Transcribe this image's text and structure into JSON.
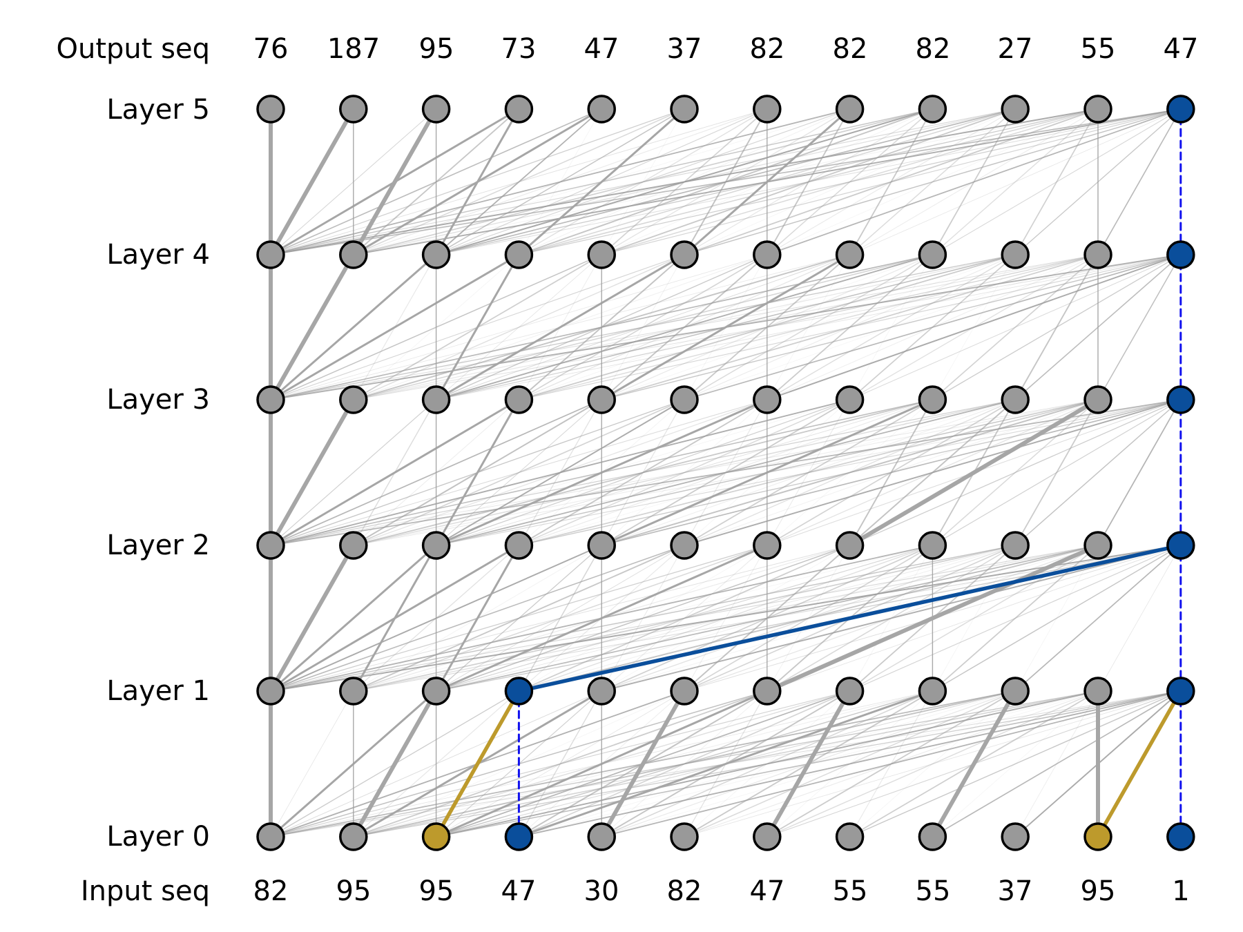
{
  "labels": {
    "output_seq": "Output seq",
    "input_seq": "Input seq",
    "layers": [
      "Layer 0",
      "Layer 1",
      "Layer 2",
      "Layer 3",
      "Layer 4",
      "Layer 5"
    ]
  },
  "output_seq": [
    "76",
    "187",
    "95",
    "73",
    "47",
    "37",
    "82",
    "82",
    "82",
    "27",
    "55",
    "47"
  ],
  "input_seq": [
    "82",
    "95",
    "95",
    "47",
    "30",
    "82",
    "47",
    "55",
    "55",
    "37",
    "95",
    "1"
  ],
  "colors": {
    "node_default": "#999999",
    "node_blue": "#0a4e9b",
    "node_gold": "#bd9a2c",
    "edge_gray": "#a6a6a6",
    "edge_blue": "#0a4e9b",
    "edge_gold": "#bd9a2c",
    "dashed": "#1010ee"
  },
  "highlighted_nodes": [
    {
      "layer": 0,
      "pos": 2,
      "color": "gold"
    },
    {
      "layer": 0,
      "pos": 3,
      "color": "blue"
    },
    {
      "layer": 0,
      "pos": 10,
      "color": "gold"
    },
    {
      "layer": 0,
      "pos": 11,
      "color": "blue"
    },
    {
      "layer": 1,
      "pos": 3,
      "color": "blue"
    },
    {
      "layer": 1,
      "pos": 11,
      "color": "blue"
    },
    {
      "layer": 2,
      "pos": 11,
      "color": "blue"
    },
    {
      "layer": 3,
      "pos": 11,
      "color": "blue"
    },
    {
      "layer": 4,
      "pos": 11,
      "color": "blue"
    },
    {
      "layer": 5,
      "pos": 11,
      "color": "blue"
    }
  ],
  "highlighted_edges": [
    {
      "from_layer": 0,
      "from": 2,
      "to": 3,
      "color": "gold"
    },
    {
      "from_layer": 0,
      "from": 10,
      "to": 11,
      "color": "gold"
    },
    {
      "from_layer": 1,
      "from": 3,
      "to": 11,
      "color": "blue"
    }
  ],
  "strong_edges": [
    {
      "from_layer": 0,
      "from": 0,
      "to": 0
    },
    {
      "from_layer": 0,
      "from": 1,
      "to": 2
    },
    {
      "from_layer": 0,
      "from": 4,
      "to": 5
    },
    {
      "from_layer": 0,
      "from": 6,
      "to": 7
    },
    {
      "from_layer": 0,
      "from": 8,
      "to": 9
    },
    {
      "from_layer": 0,
      "from": 10,
      "to": 10
    },
    {
      "from_layer": 1,
      "from": 0,
      "to": 0
    },
    {
      "from_layer": 1,
      "from": 0,
      "to": 1
    },
    {
      "from_layer": 1,
      "from": 6,
      "to": 10
    },
    {
      "from_layer": 2,
      "from": 0,
      "to": 0
    },
    {
      "from_layer": 2,
      "from": 0,
      "to": 1
    },
    {
      "from_layer": 2,
      "from": 7,
      "to": 10
    },
    {
      "from_layer": 3,
      "from": 0,
      "to": 0
    },
    {
      "from_layer": 3,
      "from": 0,
      "to": 1
    },
    {
      "from_layer": 4,
      "from": 0,
      "to": 0
    },
    {
      "from_layer": 4,
      "from": 0,
      "to": 1
    },
    {
      "from_layer": 4,
      "from": 1,
      "to": 2
    }
  ],
  "medium_edges": [
    {
      "from_layer": 0,
      "from": 0,
      "to": 2
    },
    {
      "from_layer": 0,
      "from": 1,
      "to": 4
    },
    {
      "from_layer": 0,
      "from": 2,
      "to": 6
    },
    {
      "from_layer": 0,
      "from": 3,
      "to": 8
    },
    {
      "from_layer": 1,
      "from": 0,
      "to": 2
    },
    {
      "from_layer": 1,
      "from": 0,
      "to": 3
    },
    {
      "from_layer": 1,
      "from": 1,
      "to": 2
    },
    {
      "from_layer": 1,
      "from": 2,
      "to": 3
    },
    {
      "from_layer": 1,
      "from": 2,
      "to": 6
    },
    {
      "from_layer": 2,
      "from": 0,
      "to": 3
    },
    {
      "from_layer": 2,
      "from": 2,
      "to": 3
    },
    {
      "from_layer": 2,
      "from": 2,
      "to": 6
    },
    {
      "from_layer": 2,
      "from": 4,
      "to": 8
    },
    {
      "from_layer": 3,
      "from": 0,
      "to": 2
    },
    {
      "from_layer": 3,
      "from": 0,
      "to": 3
    },
    {
      "from_layer": 3,
      "from": 2,
      "to": 3
    },
    {
      "from_layer": 3,
      "from": 2,
      "to": 5
    },
    {
      "from_layer": 3,
      "from": 4,
      "to": 7
    },
    {
      "from_layer": 4,
      "from": 0,
      "to": 3
    },
    {
      "from_layer": 4,
      "from": 1,
      "to": 4
    },
    {
      "from_layer": 4,
      "from": 2,
      "to": 3
    },
    {
      "from_layer": 4,
      "from": 3,
      "to": 5
    },
    {
      "from_layer": 4,
      "from": 5,
      "to": 7
    }
  ],
  "self_edges": [
    {
      "from_layer": 0,
      "pos": 1
    },
    {
      "from_layer": 0,
      "pos": 2
    },
    {
      "from_layer": 0,
      "pos": 4
    },
    {
      "from_layer": 1,
      "pos": 2
    },
    {
      "from_layer": 1,
      "pos": 4
    },
    {
      "from_layer": 1,
      "pos": 6
    },
    {
      "from_layer": 1,
      "pos": 8
    },
    {
      "from_layer": 2,
      "pos": 2
    },
    {
      "from_layer": 2,
      "pos": 4
    },
    {
      "from_layer": 2,
      "pos": 6
    },
    {
      "from_layer": 3,
      "pos": 2
    },
    {
      "from_layer": 3,
      "pos": 4
    },
    {
      "from_layer": 3,
      "pos": 6
    },
    {
      "from_layer": 3,
      "pos": 10
    },
    {
      "from_layer": 4,
      "pos": 1
    },
    {
      "from_layer": 4,
      "pos": 2
    },
    {
      "from_layer": 4,
      "pos": 6
    },
    {
      "from_layer": 4,
      "pos": 10
    }
  ],
  "dashed_edges": [
    {
      "from_layer": 0,
      "pos": 3
    },
    {
      "from_layer": 0,
      "pos": 11
    },
    {
      "from_layer": 1,
      "pos": 11
    },
    {
      "from_layer": 2,
      "pos": 11
    },
    {
      "from_layer": 3,
      "pos": 11
    },
    {
      "from_layer": 4,
      "pos": 11
    }
  ]
}
